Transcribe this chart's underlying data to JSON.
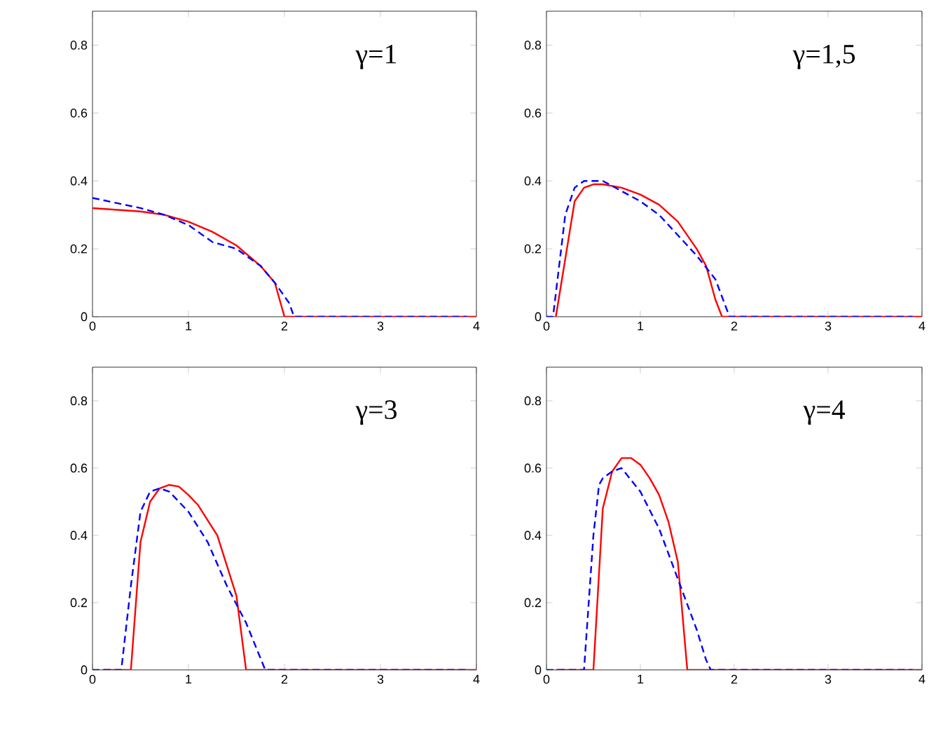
{
  "chart_data": [
    {
      "type": "line",
      "annotations": [
        "γ=1"
      ],
      "xlim": [
        0,
        4
      ],
      "ylim": [
        0,
        0.9
      ],
      "xticks": [
        0,
        1,
        2,
        3,
        4
      ],
      "yticks": [
        0,
        0.2,
        0.4,
        0.6,
        0.8
      ],
      "series": [
        {
          "color": "#ff0000",
          "line_style": "solid",
          "x": [
            0,
            0.5,
            0.75,
            1,
            1.25,
            1.5,
            1.75,
            1.9,
            2,
            4
          ],
          "values": [
            0.32,
            0.31,
            0.3,
            0.28,
            0.25,
            0.21,
            0.15,
            0.1,
            0,
            0
          ]
        },
        {
          "color": "#0000ff",
          "line_style": "dashed",
          "x": [
            0,
            0.5,
            0.75,
            1,
            1.25,
            1.5,
            1.75,
            1.9,
            2.05,
            2.1,
            3.9
          ],
          "values": [
            0.35,
            0.32,
            0.3,
            0.27,
            0.22,
            0.2,
            0.15,
            0.1,
            0.04,
            0,
            0
          ]
        }
      ]
    },
    {
      "type": "line",
      "annotations": [
        "γ=1,5"
      ],
      "xlim": [
        0,
        4
      ],
      "ylim": [
        0,
        0.9
      ],
      "xticks": [
        0,
        1,
        2,
        3,
        4
      ],
      "yticks": [
        0,
        0.2,
        0.4,
        0.6,
        0.8
      ],
      "series": [
        {
          "color": "#ff0000",
          "line_style": "solid",
          "x": [
            0.1,
            0.3,
            0.4,
            0.5,
            0.6,
            0.8,
            1,
            1.2,
            1.4,
            1.6,
            1.7,
            1.8,
            1.87,
            4
          ],
          "values": [
            0,
            0.34,
            0.38,
            0.39,
            0.39,
            0.38,
            0.36,
            0.33,
            0.28,
            0.2,
            0.15,
            0.05,
            0,
            0
          ]
        },
        {
          "color": "#0000ff",
          "line_style": "dashed",
          "x": [
            0,
            0.07,
            0.2,
            0.3,
            0.4,
            0.6,
            0.8,
            1,
            1.2,
            1.4,
            1.6,
            1.8,
            1.95,
            3.9
          ],
          "values": [
            0,
            0,
            0.3,
            0.38,
            0.4,
            0.4,
            0.37,
            0.34,
            0.3,
            0.24,
            0.18,
            0.11,
            0,
            0
          ]
        }
      ]
    },
    {
      "type": "line",
      "annotations": [
        "γ=3"
      ],
      "xlim": [
        0,
        4
      ],
      "ylim": [
        0,
        0.9
      ],
      "xticks": [
        0,
        1,
        2,
        3,
        4
      ],
      "yticks": [
        0,
        0.2,
        0.4,
        0.6,
        0.8
      ],
      "series": [
        {
          "color": "#ff0000",
          "line_style": "solid",
          "x": [
            0.1,
            0.4,
            0.5,
            0.6,
            0.7,
            0.8,
            0.9,
            1,
            1.1,
            1.3,
            1.5,
            1.6,
            4
          ],
          "values": [
            0,
            0,
            0.38,
            0.5,
            0.54,
            0.55,
            0.545,
            0.52,
            0.49,
            0.4,
            0.22,
            0,
            0
          ]
        },
        {
          "color": "#0000ff",
          "line_style": "dashed",
          "x": [
            0,
            0.3,
            0.4,
            0.5,
            0.6,
            0.7,
            0.8,
            1,
            1.2,
            1.4,
            1.6,
            1.8,
            3.9
          ],
          "values": [
            0,
            0,
            0.25,
            0.47,
            0.53,
            0.54,
            0.53,
            0.47,
            0.38,
            0.25,
            0.14,
            0,
            0
          ]
        }
      ]
    },
    {
      "type": "line",
      "annotations": [
        "γ=4"
      ],
      "xlim": [
        0,
        4
      ],
      "ylim": [
        0,
        0.9
      ],
      "xticks": [
        0,
        1,
        2,
        3,
        4
      ],
      "yticks": [
        0,
        0.2,
        0.4,
        0.6,
        0.8
      ],
      "series": [
        {
          "color": "#ff0000",
          "line_style": "solid",
          "x": [
            0.1,
            0.5,
            0.6,
            0.7,
            0.8,
            0.9,
            1,
            1.1,
            1.2,
            1.3,
            1.4,
            1.5,
            4
          ],
          "values": [
            0,
            0,
            0.48,
            0.59,
            0.63,
            0.63,
            0.61,
            0.57,
            0.52,
            0.44,
            0.32,
            0,
            0
          ]
        },
        {
          "color": "#0000ff",
          "line_style": "dashed",
          "x": [
            0,
            0.4,
            0.5,
            0.56,
            0.6,
            0.7,
            0.8,
            1,
            1.2,
            1.4,
            1.6,
            1.7,
            1.75,
            3.9
          ],
          "values": [
            0,
            0,
            0.4,
            0.55,
            0.57,
            0.59,
            0.6,
            0.53,
            0.42,
            0.27,
            0.12,
            0.03,
            0,
            0
          ]
        }
      ]
    }
  ]
}
